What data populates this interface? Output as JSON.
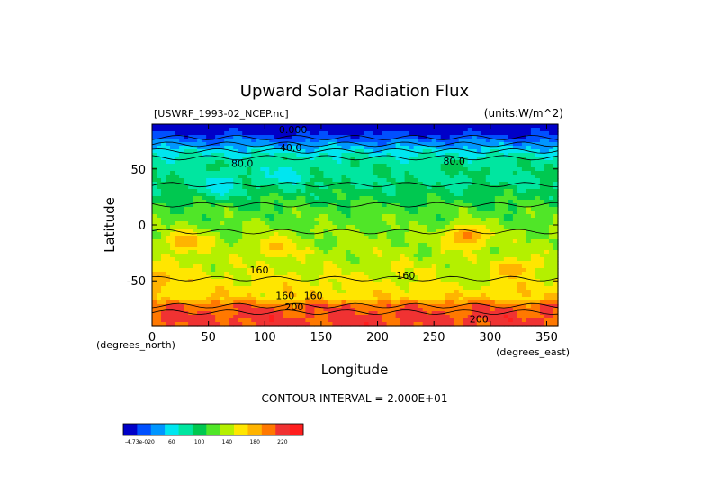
{
  "chart_data": {
    "type": "heatmap",
    "title": "Upward Solar Radiation Flux",
    "source_label": "[USWRF_1993-02_NCEP.nc]",
    "units_label": "(units:W/m^2)",
    "xlabel": "Longitude",
    "ylabel": "Latitude",
    "x_unit_label": "(degrees_east)",
    "y_unit_label": "(degrees_north)",
    "xlim": [
      0,
      360
    ],
    "ylim": [
      -90,
      90
    ],
    "x_ticks": [
      0,
      50,
      100,
      150,
      200,
      250,
      300,
      350
    ],
    "y_ticks": [
      50,
      0,
      -50
    ],
    "contour_interval_text": "CONTOUR INTERVAL = 2.000E+01",
    "contour_labels": [
      {
        "text": "0.000",
        "lon": 125,
        "lat": 85
      },
      {
        "text": "40.0",
        "lon": 123,
        "lat": 69
      },
      {
        "text": "80.0",
        "lon": 80,
        "lat": 55
      },
      {
        "text": "80.0",
        "lon": 268,
        "lat": 57
      },
      {
        "text": "160",
        "lon": 95,
        "lat": -40
      },
      {
        "text": "160",
        "lon": 225,
        "lat": -45
      },
      {
        "text": "160",
        "lon": 118,
        "lat": -63
      },
      {
        "text": "160",
        "lon": 143,
        "lat": -63
      },
      {
        "text": "200",
        "lon": 126,
        "lat": -73
      },
      {
        "text": "200",
        "lon": 290,
        "lat": -84
      }
    ],
    "colorbar": {
      "levels": [
        "-4.73e-020",
        "60",
        "100",
        "140",
        "180",
        "220"
      ],
      "colors": [
        "#0000c8",
        "#0050ff",
        "#0096ff",
        "#00e6f0",
        "#00e6a0",
        "#00c850",
        "#50e628",
        "#b4f000",
        "#ffe600",
        "#ffb400",
        "#ff7800",
        "#f03232",
        "#ff1e1e"
      ]
    },
    "lat_profile": [
      {
        "lat": 90,
        "value": 0
      },
      {
        "lat": 84,
        "value": 10
      },
      {
        "lat": 78,
        "value": 30
      },
      {
        "lat": 72,
        "value": 50
      },
      {
        "lat": 66,
        "value": 70
      },
      {
        "lat": 60,
        "value": 88
      },
      {
        "lat": 54,
        "value": 95
      },
      {
        "lat": 48,
        "value": 98
      },
      {
        "lat": 42,
        "value": 96
      },
      {
        "lat": 36,
        "value": 100
      },
      {
        "lat": 30,
        "value": 108
      },
      {
        "lat": 24,
        "value": 115
      },
      {
        "lat": 18,
        "value": 122
      },
      {
        "lat": 12,
        "value": 128
      },
      {
        "lat": 6,
        "value": 132
      },
      {
        "lat": 0,
        "value": 135
      },
      {
        "lat": -6,
        "value": 140
      },
      {
        "lat": -12,
        "value": 143
      },
      {
        "lat": -18,
        "value": 145
      },
      {
        "lat": -24,
        "value": 148
      },
      {
        "lat": -30,
        "value": 150
      },
      {
        "lat": -36,
        "value": 155
      },
      {
        "lat": -42,
        "value": 158
      },
      {
        "lat": -48,
        "value": 162
      },
      {
        "lat": -54,
        "value": 168
      },
      {
        "lat": -60,
        "value": 172
      },
      {
        "lat": -66,
        "value": 178
      },
      {
        "lat": -72,
        "value": 215
      },
      {
        "lat": -78,
        "value": 222
      },
      {
        "lat": -84,
        "value": 225
      },
      {
        "lat": -90,
        "value": 225
      }
    ],
    "anomalies": [
      {
        "lon": 280,
        "lat": -10,
        "value": 205
      },
      {
        "lon": 30,
        "lat": -15,
        "value": 195
      },
      {
        "lon": 110,
        "lat": -20,
        "value": 185
      },
      {
        "lon": 60,
        "lat": 35,
        "value": 65
      },
      {
        "lon": 120,
        "lat": 45,
        "value": 72
      },
      {
        "lon": 320,
        "lat": -40,
        "value": 190
      },
      {
        "lon": 5,
        "lat": -48,
        "value": 190
      },
      {
        "lon": 280,
        "lat": -45,
        "value": 140
      }
    ]
  }
}
